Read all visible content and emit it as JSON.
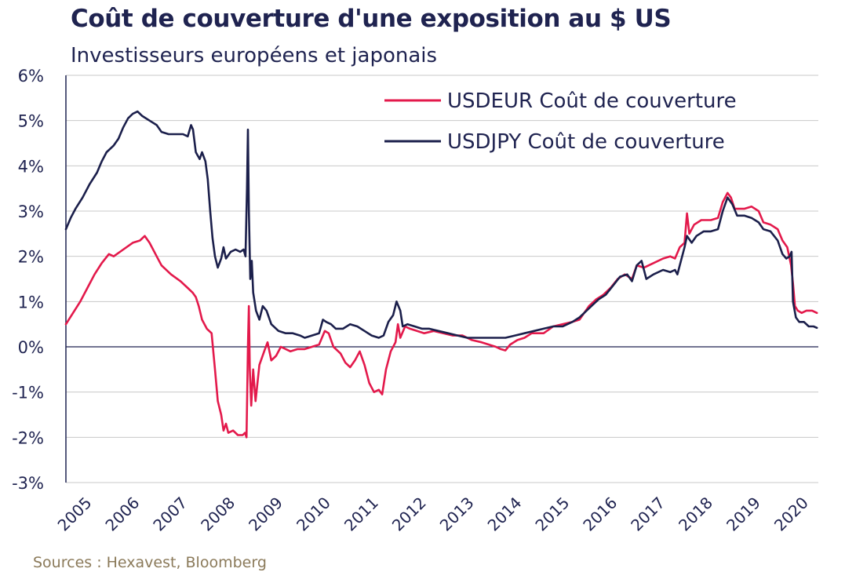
{
  "header": {
    "title": "Coût de couverture d'une exposition au $ US",
    "subtitle": "Investisseurs européens et japonais"
  },
  "footer": {
    "source": "Sources : Hexavest, Bloomberg"
  },
  "colors": {
    "usdeur": "#e3194b",
    "usdjpy": "#1b1f4b",
    "grid": "#c8c8c8",
    "axis": "#1f2350"
  },
  "chart_data": {
    "type": "line",
    "title": "Coût de couverture d'une exposition au $ US",
    "subtitle": "Investisseurs européens et japonais",
    "xlabel": "",
    "ylabel": "",
    "xlim": [
      2005.0,
      2020.75
    ],
    "ylim": [
      -3,
      6
    ],
    "y_ticks": [
      "-3%",
      "-2%",
      "-1%",
      "0%",
      "1%",
      "2%",
      "3%",
      "4%",
      "5%",
      "6%"
    ],
    "y_tick_values": [
      -3,
      -2,
      -1,
      0,
      1,
      2,
      3,
      4,
      5,
      6
    ],
    "x_ticks": [
      "2005",
      "2006",
      "2007",
      "2008",
      "2009",
      "2010",
      "2011",
      "2012",
      "2013",
      "2014",
      "2015",
      "2016",
      "2017",
      "2018",
      "2019",
      "2020"
    ],
    "x_tick_values": [
      2005,
      2006,
      2007,
      2008,
      2009,
      2010,
      2011,
      2012,
      2013,
      2014,
      2015,
      2016,
      2017,
      2018,
      2019,
      2020
    ],
    "grid": true,
    "legend_position": "top-right",
    "series": [
      {
        "name": "USDEUR Coût de couverture",
        "color": "#e3194b",
        "points": [
          [
            2005.0,
            0.5
          ],
          [
            2005.15,
            0.75
          ],
          [
            2005.3,
            1.0
          ],
          [
            2005.45,
            1.3
          ],
          [
            2005.6,
            1.6
          ],
          [
            2005.75,
            1.85
          ],
          [
            2005.9,
            2.05
          ],
          [
            2006.0,
            2.0
          ],
          [
            2006.2,
            2.15
          ],
          [
            2006.4,
            2.3
          ],
          [
            2006.55,
            2.35
          ],
          [
            2006.65,
            2.45
          ],
          [
            2006.75,
            2.3
          ],
          [
            2006.9,
            2.0
          ],
          [
            2007.0,
            1.8
          ],
          [
            2007.2,
            1.6
          ],
          [
            2007.4,
            1.45
          ],
          [
            2007.55,
            1.3
          ],
          [
            2007.65,
            1.2
          ],
          [
            2007.72,
            1.1
          ],
          [
            2007.78,
            0.9
          ],
          [
            2007.85,
            0.6
          ],
          [
            2007.95,
            0.4
          ],
          [
            2008.05,
            0.3
          ],
          [
            2008.12,
            -0.5
          ],
          [
            2008.18,
            -1.2
          ],
          [
            2008.25,
            -1.5
          ],
          [
            2008.3,
            -1.85
          ],
          [
            2008.35,
            -1.7
          ],
          [
            2008.4,
            -1.9
          ],
          [
            2008.5,
            -1.85
          ],
          [
            2008.6,
            -1.95
          ],
          [
            2008.7,
            -1.95
          ],
          [
            2008.75,
            -1.9
          ],
          [
            2008.78,
            -2.0
          ],
          [
            2008.81,
            0.0
          ],
          [
            2008.83,
            0.9
          ],
          [
            2008.85,
            -0.5
          ],
          [
            2008.88,
            -1.3
          ],
          [
            2008.92,
            -0.5
          ],
          [
            2008.97,
            -1.2
          ],
          [
            2009.05,
            -0.4
          ],
          [
            2009.15,
            -0.1
          ],
          [
            2009.22,
            0.1
          ],
          [
            2009.3,
            -0.3
          ],
          [
            2009.4,
            -0.2
          ],
          [
            2009.5,
            0.0
          ],
          [
            2009.7,
            -0.1
          ],
          [
            2009.85,
            -0.05
          ],
          [
            2010.0,
            -0.05
          ],
          [
            2010.15,
            0.0
          ],
          [
            2010.3,
            0.05
          ],
          [
            2010.42,
            0.35
          ],
          [
            2010.5,
            0.3
          ],
          [
            2010.6,
            0.0
          ],
          [
            2010.75,
            -0.15
          ],
          [
            2010.85,
            -0.35
          ],
          [
            2010.95,
            -0.45
          ],
          [
            2011.05,
            -0.3
          ],
          [
            2011.15,
            -0.1
          ],
          [
            2011.25,
            -0.4
          ],
          [
            2011.35,
            -0.8
          ],
          [
            2011.45,
            -1.0
          ],
          [
            2011.55,
            -0.95
          ],
          [
            2011.62,
            -1.05
          ],
          [
            2011.7,
            -0.5
          ],
          [
            2011.8,
            -0.1
          ],
          [
            2011.9,
            0.1
          ],
          [
            2011.95,
            0.5
          ],
          [
            2012.0,
            0.2
          ],
          [
            2012.1,
            0.45
          ],
          [
            2012.2,
            0.4
          ],
          [
            2012.35,
            0.35
          ],
          [
            2012.5,
            0.3
          ],
          [
            2012.7,
            0.35
          ],
          [
            2012.9,
            0.3
          ],
          [
            2013.1,
            0.25
          ],
          [
            2013.3,
            0.25
          ],
          [
            2013.5,
            0.15
          ],
          [
            2013.7,
            0.1
          ],
          [
            2013.85,
            0.05
          ],
          [
            2014.0,
            0.0
          ],
          [
            2014.1,
            -0.05
          ],
          [
            2014.2,
            -0.08
          ],
          [
            2014.3,
            0.05
          ],
          [
            2014.45,
            0.15
          ],
          [
            2014.6,
            0.2
          ],
          [
            2014.75,
            0.3
          ],
          [
            2014.9,
            0.3
          ],
          [
            2015.0,
            0.3
          ],
          [
            2015.2,
            0.45
          ],
          [
            2015.4,
            0.5
          ],
          [
            2015.6,
            0.55
          ],
          [
            2015.75,
            0.6
          ],
          [
            2015.85,
            0.75
          ],
          [
            2015.95,
            0.9
          ],
          [
            2016.1,
            1.05
          ],
          [
            2016.25,
            1.15
          ],
          [
            2016.4,
            1.3
          ],
          [
            2016.55,
            1.5
          ],
          [
            2016.7,
            1.6
          ],
          [
            2016.85,
            1.5
          ],
          [
            2016.95,
            1.8
          ],
          [
            2017.1,
            1.75
          ],
          [
            2017.3,
            1.85
          ],
          [
            2017.5,
            1.95
          ],
          [
            2017.65,
            2.0
          ],
          [
            2017.75,
            1.95
          ],
          [
            2017.85,
            2.2
          ],
          [
            2017.95,
            2.3
          ],
          [
            2018.0,
            2.95
          ],
          [
            2018.05,
            2.5
          ],
          [
            2018.15,
            2.7
          ],
          [
            2018.3,
            2.8
          ],
          [
            2018.5,
            2.8
          ],
          [
            2018.65,
            2.85
          ],
          [
            2018.75,
            3.2
          ],
          [
            2018.85,
            3.4
          ],
          [
            2018.92,
            3.3
          ],
          [
            2019.0,
            3.05
          ],
          [
            2019.2,
            3.05
          ],
          [
            2019.35,
            3.1
          ],
          [
            2019.5,
            3.0
          ],
          [
            2019.6,
            2.75
          ],
          [
            2019.75,
            2.7
          ],
          [
            2019.9,
            2.6
          ],
          [
            2020.0,
            2.35
          ],
          [
            2020.1,
            2.2
          ],
          [
            2020.18,
            1.8
          ],
          [
            2020.22,
            1.4
          ],
          [
            2020.26,
            0.9
          ],
          [
            2020.32,
            0.8
          ],
          [
            2020.4,
            0.75
          ],
          [
            2020.5,
            0.8
          ],
          [
            2020.62,
            0.8
          ],
          [
            2020.72,
            0.75
          ]
        ]
      },
      {
        "name": "USDJPY Coût de couverture",
        "color": "#1b1f4b",
        "points": [
          [
            2005.0,
            2.6
          ],
          [
            2005.1,
            2.85
          ],
          [
            2005.2,
            3.05
          ],
          [
            2005.35,
            3.3
          ],
          [
            2005.5,
            3.6
          ],
          [
            2005.65,
            3.85
          ],
          [
            2005.75,
            4.1
          ],
          [
            2005.85,
            4.3
          ],
          [
            2006.0,
            4.45
          ],
          [
            2006.1,
            4.6
          ],
          [
            2006.2,
            4.85
          ],
          [
            2006.3,
            5.05
          ],
          [
            2006.4,
            5.15
          ],
          [
            2006.5,
            5.2
          ],
          [
            2006.6,
            5.1
          ],
          [
            2006.75,
            5.0
          ],
          [
            2006.9,
            4.9
          ],
          [
            2007.0,
            4.75
          ],
          [
            2007.15,
            4.7
          ],
          [
            2007.3,
            4.7
          ],
          [
            2007.45,
            4.7
          ],
          [
            2007.55,
            4.65
          ],
          [
            2007.62,
            4.9
          ],
          [
            2007.66,
            4.8
          ],
          [
            2007.72,
            4.3
          ],
          [
            2007.8,
            4.15
          ],
          [
            2007.85,
            4.3
          ],
          [
            2007.92,
            4.1
          ],
          [
            2007.97,
            3.7
          ],
          [
            2008.02,
            3.0
          ],
          [
            2008.07,
            2.4
          ],
          [
            2008.12,
            2.0
          ],
          [
            2008.18,
            1.75
          ],
          [
            2008.25,
            1.95
          ],
          [
            2008.3,
            2.2
          ],
          [
            2008.35,
            1.95
          ],
          [
            2008.45,
            2.1
          ],
          [
            2008.55,
            2.15
          ],
          [
            2008.65,
            2.1
          ],
          [
            2008.72,
            2.15
          ],
          [
            2008.76,
            2.0
          ],
          [
            2008.79,
            3.5
          ],
          [
            2008.81,
            4.8
          ],
          [
            2008.83,
            3.0
          ],
          [
            2008.86,
            1.5
          ],
          [
            2008.89,
            1.9
          ],
          [
            2008.92,
            1.2
          ],
          [
            2008.98,
            0.8
          ],
          [
            2009.05,
            0.6
          ],
          [
            2009.12,
            0.9
          ],
          [
            2009.2,
            0.8
          ],
          [
            2009.3,
            0.5
          ],
          [
            2009.45,
            0.35
          ],
          [
            2009.6,
            0.3
          ],
          [
            2009.75,
            0.3
          ],
          [
            2009.9,
            0.25
          ],
          [
            2010.0,
            0.2
          ],
          [
            2010.15,
            0.25
          ],
          [
            2010.3,
            0.3
          ],
          [
            2010.38,
            0.6
          ],
          [
            2010.45,
            0.55
          ],
          [
            2010.55,
            0.5
          ],
          [
            2010.65,
            0.4
          ],
          [
            2010.8,
            0.4
          ],
          [
            2010.95,
            0.5
          ],
          [
            2011.1,
            0.45
          ],
          [
            2011.25,
            0.35
          ],
          [
            2011.4,
            0.25
          ],
          [
            2011.55,
            0.2
          ],
          [
            2011.65,
            0.25
          ],
          [
            2011.75,
            0.55
          ],
          [
            2011.85,
            0.7
          ],
          [
            2011.92,
            1.0
          ],
          [
            2012.0,
            0.8
          ],
          [
            2012.05,
            0.45
          ],
          [
            2012.15,
            0.5
          ],
          [
            2012.3,
            0.45
          ],
          [
            2012.45,
            0.4
          ],
          [
            2012.6,
            0.4
          ],
          [
            2012.8,
            0.35
          ],
          [
            2013.0,
            0.3
          ],
          [
            2013.2,
            0.25
          ],
          [
            2013.4,
            0.2
          ],
          [
            2013.6,
            0.2
          ],
          [
            2013.8,
            0.2
          ],
          [
            2014.0,
            0.2
          ],
          [
            2014.2,
            0.2
          ],
          [
            2014.4,
            0.25
          ],
          [
            2014.6,
            0.3
          ],
          [
            2014.8,
            0.35
          ],
          [
            2015.0,
            0.4
          ],
          [
            2015.2,
            0.45
          ],
          [
            2015.4,
            0.45
          ],
          [
            2015.6,
            0.55
          ],
          [
            2015.75,
            0.65
          ],
          [
            2015.85,
            0.75
          ],
          [
            2016.0,
            0.9
          ],
          [
            2016.15,
            1.05
          ],
          [
            2016.3,
            1.15
          ],
          [
            2016.45,
            1.35
          ],
          [
            2016.6,
            1.55
          ],
          [
            2016.75,
            1.6
          ],
          [
            2016.85,
            1.45
          ],
          [
            2016.95,
            1.8
          ],
          [
            2017.05,
            1.9
          ],
          [
            2017.15,
            1.5
          ],
          [
            2017.3,
            1.6
          ],
          [
            2017.5,
            1.7
          ],
          [
            2017.65,
            1.65
          ],
          [
            2017.75,
            1.7
          ],
          [
            2017.8,
            1.6
          ],
          [
            2017.85,
            1.8
          ],
          [
            2017.95,
            2.2
          ],
          [
            2018.0,
            2.45
          ],
          [
            2018.1,
            2.3
          ],
          [
            2018.2,
            2.45
          ],
          [
            2018.35,
            2.55
          ],
          [
            2018.5,
            2.55
          ],
          [
            2018.65,
            2.6
          ],
          [
            2018.75,
            3.0
          ],
          [
            2018.85,
            3.3
          ],
          [
            2018.95,
            3.15
          ],
          [
            2019.05,
            2.9
          ],
          [
            2019.2,
            2.9
          ],
          [
            2019.35,
            2.85
          ],
          [
            2019.5,
            2.75
          ],
          [
            2019.6,
            2.6
          ],
          [
            2019.75,
            2.55
          ],
          [
            2019.9,
            2.35
          ],
          [
            2020.0,
            2.05
          ],
          [
            2020.08,
            1.95
          ],
          [
            2020.15,
            2.0
          ],
          [
            2020.19,
            2.1
          ],
          [
            2020.22,
            1.0
          ],
          [
            2020.28,
            0.65
          ],
          [
            2020.35,
            0.55
          ],
          [
            2020.45,
            0.55
          ],
          [
            2020.55,
            0.45
          ],
          [
            2020.65,
            0.45
          ],
          [
            2020.72,
            0.42
          ]
        ]
      }
    ]
  }
}
